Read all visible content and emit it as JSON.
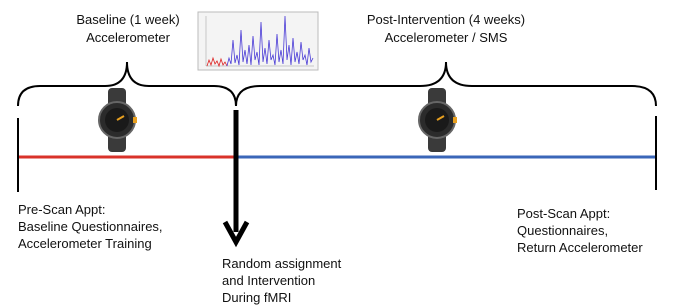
{
  "phases": [
    {
      "lines": [
        "Baseline (1 week)",
        "Accelerometer"
      ]
    },
    {
      "lines": [
        "Post-Intervention (4 weeks)",
        "Accelerometer / SMS"
      ]
    }
  ],
  "events": [
    {
      "lines": [
        "Pre-Scan Appt:",
        "Baseline Questionnaires,",
        "Accelerometer Training"
      ]
    },
    {
      "lines": [
        "Random assignment",
        "and Intervention",
        "During fMRI"
      ]
    },
    {
      "lines": [
        "Post-Scan Appt:",
        "Questionnaires,",
        "Return Accelerometer"
      ]
    }
  ]
}
